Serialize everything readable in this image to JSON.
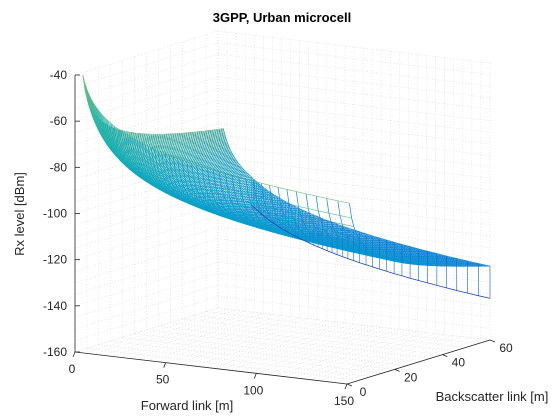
{
  "chart_data": {
    "type": "surface3d",
    "title": "3GPP, Urban microcell",
    "xlabel": "Forward link [m]",
    "ylabel": "Backscatter link [m]",
    "zlabel": "Rx level [dBm]",
    "x_range": [
      0,
      150
    ],
    "y_range": [
      0,
      60
    ],
    "z_range": [
      -160,
      -40
    ],
    "x_ticks": [
      "0",
      "50",
      "100",
      "150"
    ],
    "y_ticks": [
      "0",
      "20",
      "40",
      "60"
    ],
    "z_ticks": [
      "-40",
      "-60",
      "-80",
      "-100",
      "-120",
      "-140",
      "-160"
    ],
    "grid": true,
    "colormap": "parula",
    "surface_model": {
      "x_data_span": [
        3,
        150
      ],
      "y_data_span": [
        1,
        60
      ],
      "transition_x_m": 18,
      "samples": [
        {
          "x": 3,
          "y": 1,
          "rx_dbm": -40
        },
        {
          "x": 3,
          "y": 60,
          "rx_dbm": -82
        },
        {
          "x": 18,
          "y": 60,
          "rx_dbm": -90
        },
        {
          "x": 18,
          "y": 60,
          "rx_dbm": -102
        },
        {
          "x": 150,
          "y": 1,
          "rx_dbm": -82
        },
        {
          "x": 150,
          "y": 60,
          "rx_dbm": -128
        },
        {
          "x": 150,
          "y": 60,
          "rx_dbm": -142
        }
      ]
    }
  }
}
